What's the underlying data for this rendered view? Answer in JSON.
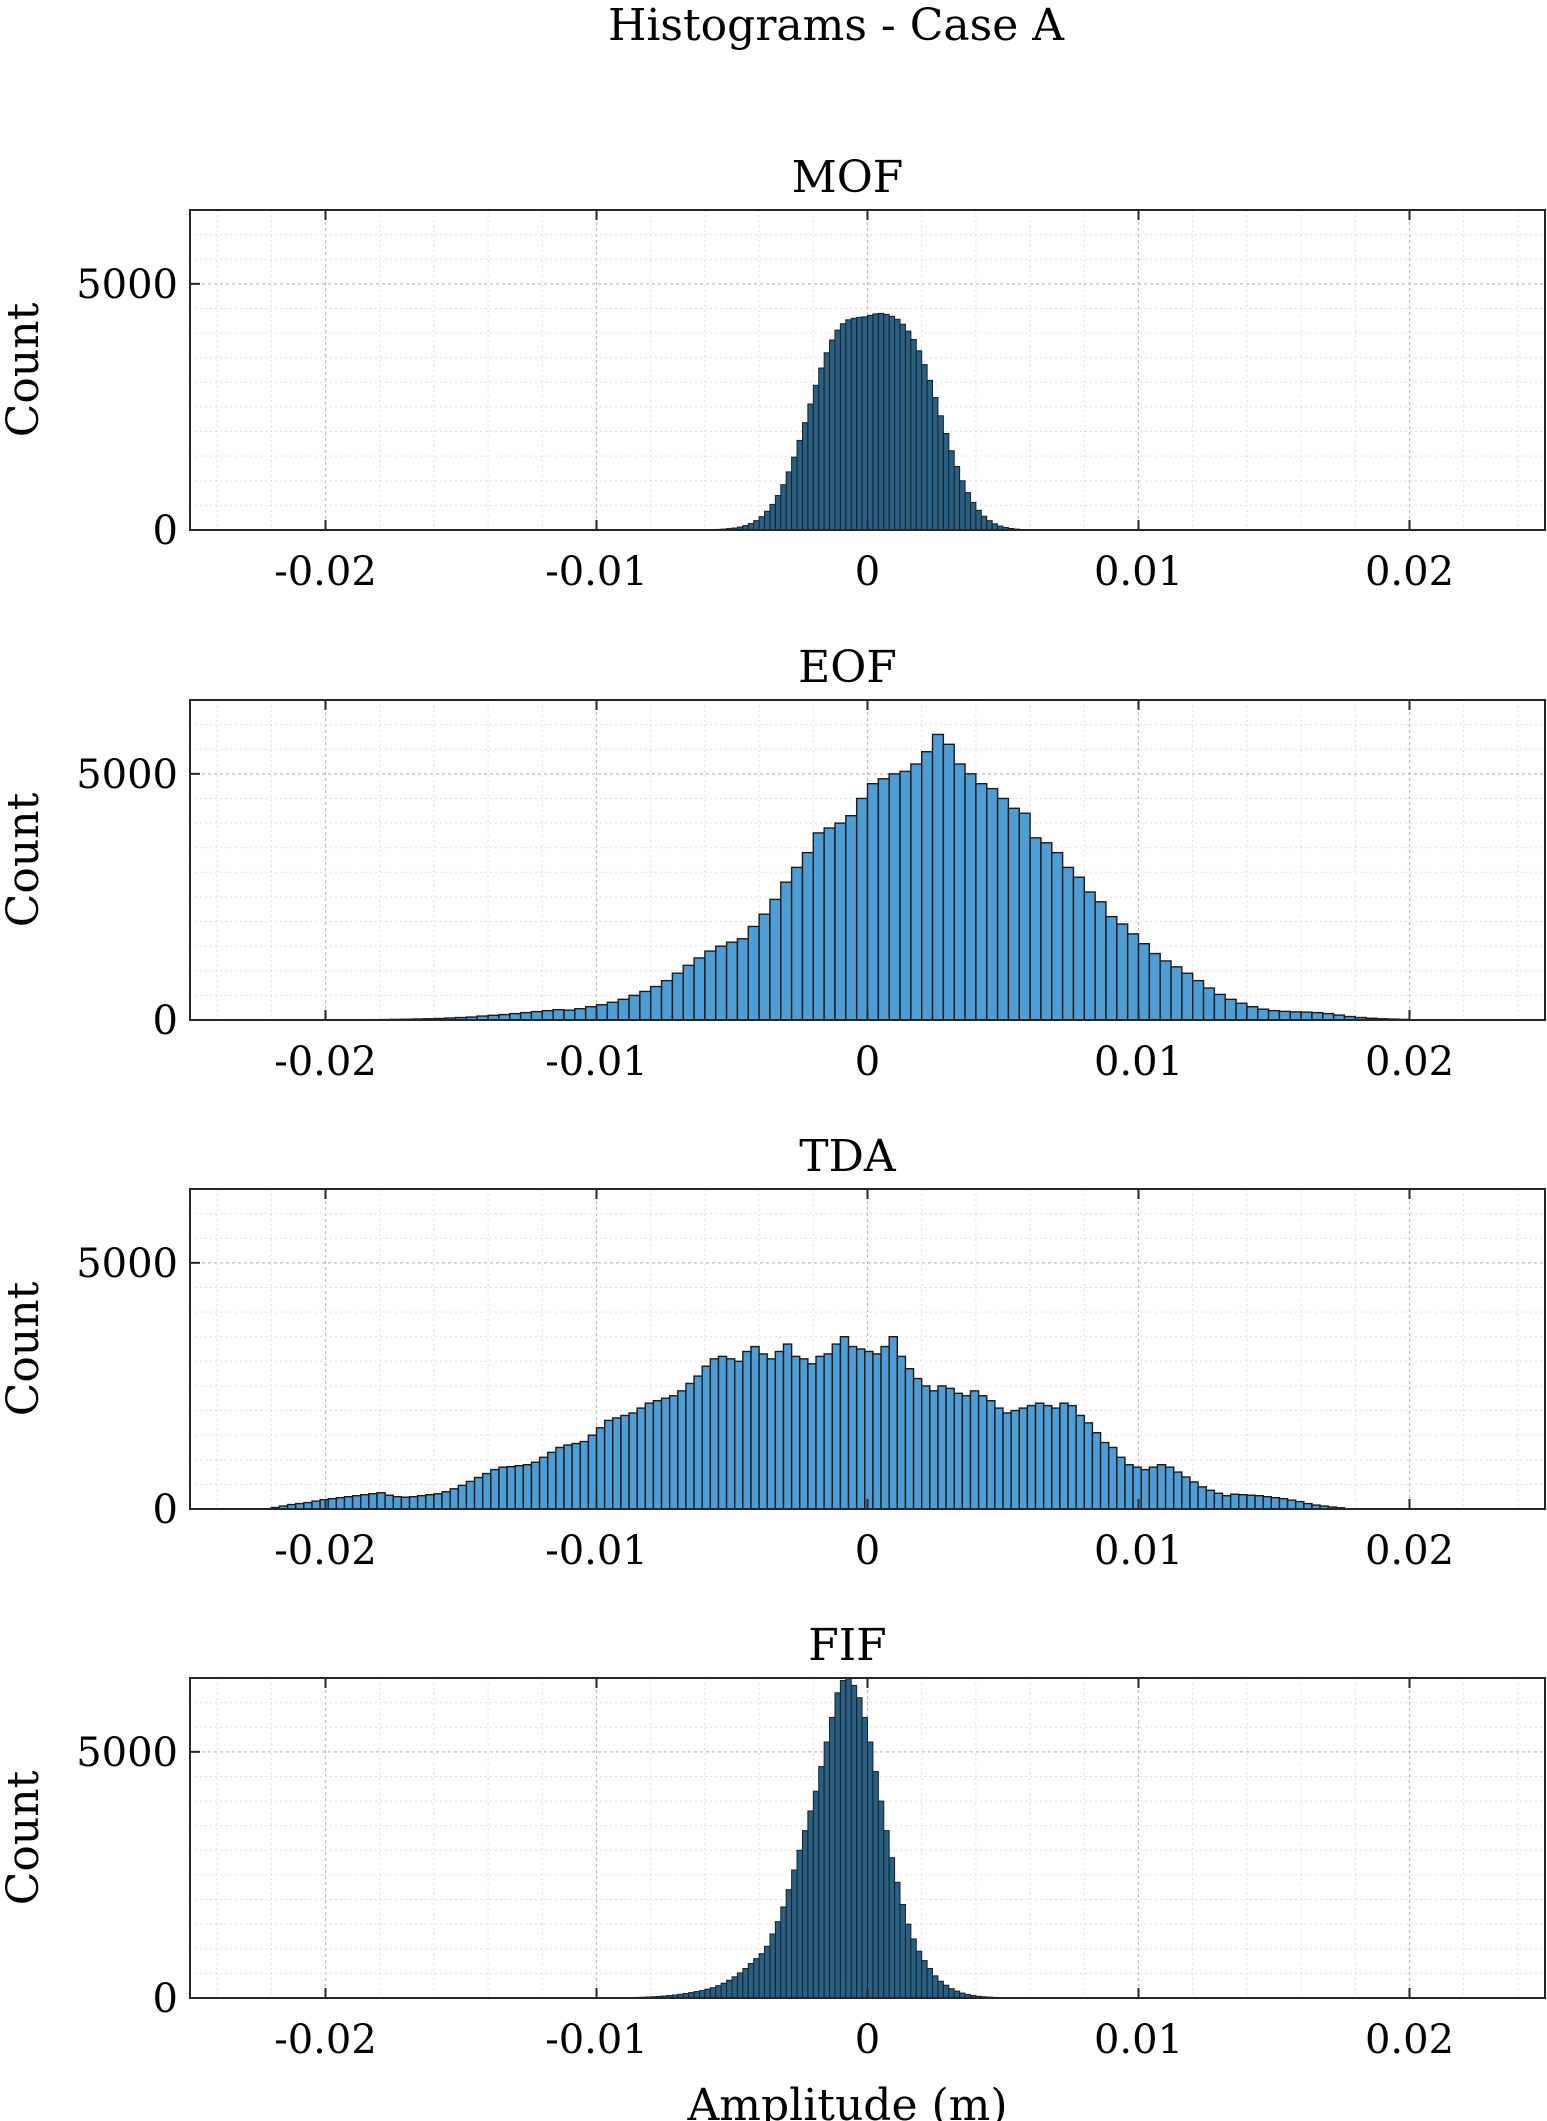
{
  "figure": {
    "title": "Histograms - Case A"
  },
  "chart_data": [
    {
      "type": "bar",
      "title": "MOF",
      "xlabel": "",
      "ylabel": "Count",
      "xlim": [
        -0.025,
        0.025
      ],
      "ylim": [
        0,
        6500
      ],
      "xticks": [
        -0.02,
        -0.01,
        0,
        0.01,
        0.02
      ],
      "xtick_labels": [
        "-0.02",
        "-0.01",
        "0",
        "0.01",
        "0.02"
      ],
      "yticks": [
        0,
        5000
      ],
      "ytick_labels": [
        "0",
        "5000"
      ],
      "grid": true,
      "bin_edges": {
        "start": -0.006,
        "width": 0.0002
      },
      "values": [
        5,
        8,
        12,
        18,
        28,
        40,
        60,
        90,
        130,
        190,
        270,
        380,
        520,
        700,
        920,
        1180,
        1480,
        1820,
        2180,
        2560,
        2940,
        3290,
        3600,
        3860,
        4060,
        4190,
        4270,
        4300,
        4320,
        4330,
        4360,
        4390,
        4400,
        4380,
        4340,
        4280,
        4180,
        4040,
        3870,
        3640,
        3360,
        3040,
        2690,
        2320,
        1960,
        1610,
        1290,
        1000,
        760,
        560,
        400,
        280,
        190,
        125,
        80,
        50,
        30,
        18,
        10,
        5
      ]
    },
    {
      "type": "bar",
      "title": "EOF",
      "xlabel": "",
      "ylabel": "Count",
      "xlim": [
        -0.025,
        0.025
      ],
      "ylim": [
        0,
        6500
      ],
      "xticks": [
        -0.02,
        -0.01,
        0,
        0.01,
        0.02
      ],
      "xtick_labels": [
        "-0.02",
        "-0.01",
        "0",
        "0.01",
        "0.02"
      ],
      "yticks": [
        0,
        5000
      ],
      "ytick_labels": [
        "0",
        "5000"
      ],
      "grid": true,
      "bin_edges": {
        "start": -0.02,
        "width": 0.0004
      },
      "values": [
        2,
        3,
        4,
        5,
        7,
        9,
        12,
        15,
        20,
        25,
        30,
        40,
        50,
        60,
        80,
        95,
        110,
        130,
        150,
        170,
        190,
        210,
        200,
        230,
        270,
        310,
        360,
        420,
        500,
        580,
        680,
        800,
        950,
        1110,
        1260,
        1400,
        1500,
        1580,
        1650,
        1900,
        2150,
        2450,
        2800,
        3100,
        3400,
        3800,
        3900,
        4000,
        4150,
        4500,
        4800,
        4900,
        5000,
        5050,
        5200,
        5450,
        5800,
        5600,
        5200,
        5000,
        4800,
        4700,
        4500,
        4300,
        4200,
        3700,
        3600,
        3400,
        3100,
        2900,
        2600,
        2400,
        2100,
        1950,
        1750,
        1550,
        1350,
        1200,
        1080,
        950,
        800,
        650,
        520,
        420,
        340,
        270,
        220,
        190,
        175,
        165,
        160,
        150,
        130,
        100,
        70,
        50,
        35,
        25,
        18,
        12
      ]
    },
    {
      "type": "bar",
      "title": "TDA",
      "xlabel": "",
      "ylabel": "Count",
      "xlim": [
        -0.025,
        0.025
      ],
      "ylim": [
        0,
        6500
      ],
      "xticks": [
        -0.02,
        -0.01,
        0,
        0.01,
        0.02
      ],
      "xtick_labels": [
        "-0.02",
        "-0.01",
        "0",
        "0.01",
        "0.02"
      ],
      "yticks": [
        0,
        5000
      ],
      "ytick_labels": [
        "0",
        "5000"
      ],
      "grid": true,
      "bin_edges": {
        "start": -0.022,
        "width": 0.0003
      },
      "values": [
        30,
        60,
        90,
        110,
        130,
        160,
        190,
        210,
        230,
        250,
        270,
        290,
        310,
        330,
        280,
        250,
        240,
        250,
        270,
        290,
        310,
        350,
        410,
        480,
        560,
        640,
        720,
        800,
        850,
        860,
        880,
        900,
        950,
        1050,
        1150,
        1250,
        1300,
        1330,
        1370,
        1500,
        1650,
        1800,
        1850,
        1900,
        1950,
        2050,
        2150,
        2200,
        2250,
        2300,
        2400,
        2550,
        2700,
        2900,
        3050,
        3100,
        3050,
        3000,
        3200,
        3300,
        3150,
        3050,
        3200,
        3350,
        3100,
        3050,
        2950,
        3100,
        3150,
        3350,
        3500,
        3300,
        3250,
        3200,
        3150,
        3300,
        3500,
        3100,
        2850,
        2650,
        2500,
        2400,
        2500,
        2450,
        2350,
        2300,
        2400,
        2300,
        2200,
        2050,
        1950,
        2000,
        2050,
        2100,
        2150,
        2100,
        2050,
        2150,
        2100,
        1900,
        1750,
        1550,
        1350,
        1250,
        1050,
        900,
        850,
        800,
        850,
        900,
        850,
        750,
        650,
        550,
        450,
        380,
        320,
        270,
        300,
        290,
        280,
        270,
        250,
        230,
        210,
        180,
        150,
        110,
        80,
        60,
        40,
        25
      ]
    },
    {
      "type": "bar",
      "title": "FIF",
      "xlabel": "Amplitude (m)",
      "ylabel": "Count",
      "xlim": [
        -0.025,
        0.025
      ],
      "ylim": [
        0,
        6500
      ],
      "xticks": [
        -0.02,
        -0.01,
        0,
        0.01,
        0.02
      ],
      "xtick_labels": [
        "-0.02",
        "-0.01",
        "0",
        "0.01",
        "0.02"
      ],
      "yticks": [
        0,
        5000
      ],
      "ytick_labels": [
        "0",
        "5000"
      ],
      "grid": true,
      "bin_edges": {
        "start": -0.01,
        "width": 0.0002
      },
      "values": [
        2,
        3,
        4,
        5,
        6,
        8,
        10,
        12,
        15,
        20,
        25,
        30,
        40,
        50,
        60,
        75,
        90,
        110,
        130,
        150,
        180,
        210,
        250,
        300,
        360,
        430,
        510,
        600,
        700,
        800,
        900,
        1050,
        1300,
        1550,
        1850,
        2200,
        2600,
        3000,
        3400,
        3800,
        4200,
        4700,
        5200,
        5700,
        6200,
        6450,
        6500,
        6350,
        6100,
        5700,
        5200,
        4600,
        4000,
        3400,
        2850,
        2350,
        1900,
        1500,
        1200,
        950,
        760,
        600,
        450,
        340,
        260,
        190,
        140,
        100,
        70,
        50,
        35,
        25,
        18,
        12,
        8,
        5
      ]
    }
  ]
}
